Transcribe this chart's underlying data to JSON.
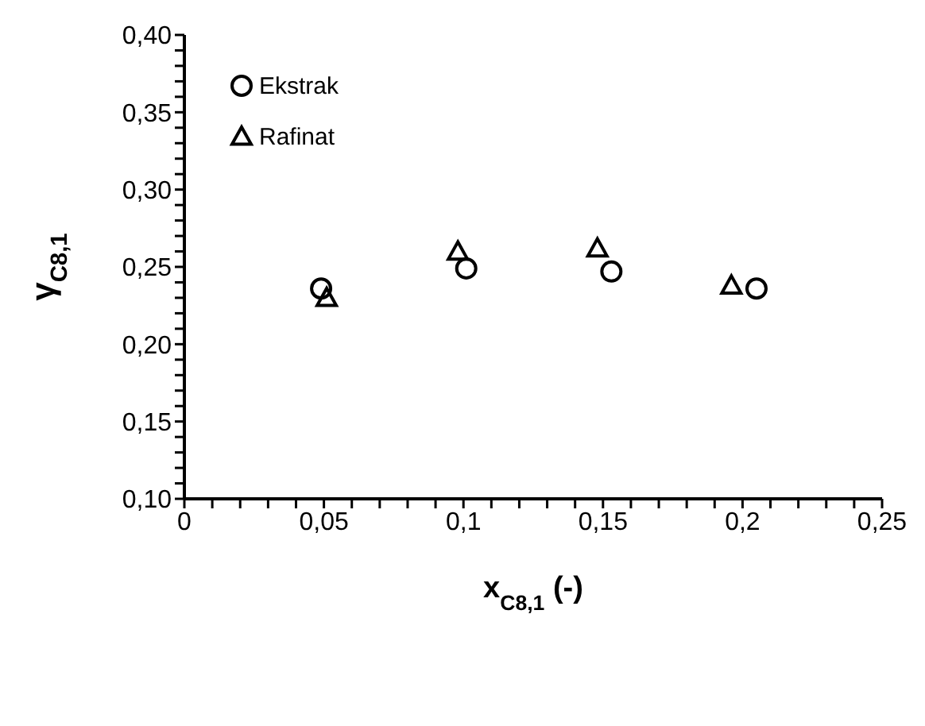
{
  "chart_data": {
    "type": "scatter",
    "xlabel": "x$_{C8,1}$ (-)",
    "ylabel": "γ$_{C8,1}$",
    "xlim": [
      0,
      0.25
    ],
    "ylim": [
      0.1,
      0.4
    ],
    "xticks": [
      {
        "value": 0,
        "label": "0"
      },
      {
        "value": 0.01,
        "label": null
      },
      {
        "value": 0.02,
        "label": null
      },
      {
        "value": 0.03,
        "label": null
      },
      {
        "value": 0.04,
        "label": null
      },
      {
        "value": 0.05,
        "label": "0,05"
      },
      {
        "value": 0.06,
        "label": null
      },
      {
        "value": 0.07,
        "label": null
      },
      {
        "value": 0.08,
        "label": null
      },
      {
        "value": 0.09,
        "label": null
      },
      {
        "value": 0.1,
        "label": "0,1"
      },
      {
        "value": 0.11,
        "label": null
      },
      {
        "value": 0.12,
        "label": null
      },
      {
        "value": 0.13,
        "label": null
      },
      {
        "value": 0.14,
        "label": null
      },
      {
        "value": 0.15,
        "label": "0,15"
      },
      {
        "value": 0.16,
        "label": null
      },
      {
        "value": 0.17,
        "label": null
      },
      {
        "value": 0.18,
        "label": null
      },
      {
        "value": 0.19,
        "label": null
      },
      {
        "value": 0.2,
        "label": "0,2"
      },
      {
        "value": 0.21,
        "label": null
      },
      {
        "value": 0.22,
        "label": null
      },
      {
        "value": 0.23,
        "label": null
      },
      {
        "value": 0.24,
        "label": null
      },
      {
        "value": 0.25,
        "label": "0,25"
      }
    ],
    "yticks": [
      {
        "value": 0.1,
        "label": "0,10"
      },
      {
        "value": 0.11,
        "label": null
      },
      {
        "value": 0.12,
        "label": null
      },
      {
        "value": 0.13,
        "label": null
      },
      {
        "value": 0.14,
        "label": null
      },
      {
        "value": 0.15,
        "label": "0,15"
      },
      {
        "value": 0.16,
        "label": null
      },
      {
        "value": 0.17,
        "label": null
      },
      {
        "value": 0.18,
        "label": null
      },
      {
        "value": 0.19,
        "label": null
      },
      {
        "value": 0.2,
        "label": "0,20"
      },
      {
        "value": 0.21,
        "label": null
      },
      {
        "value": 0.22,
        "label": null
      },
      {
        "value": 0.23,
        "label": null
      },
      {
        "value": 0.24,
        "label": null
      },
      {
        "value": 0.25,
        "label": "0,25"
      },
      {
        "value": 0.26,
        "label": null
      },
      {
        "value": 0.27,
        "label": null
      },
      {
        "value": 0.28,
        "label": null
      },
      {
        "value": 0.29,
        "label": null
      },
      {
        "value": 0.3,
        "label": "0,30"
      },
      {
        "value": 0.31,
        "label": null
      },
      {
        "value": 0.32,
        "label": null
      },
      {
        "value": 0.33,
        "label": null
      },
      {
        "value": 0.34,
        "label": null
      },
      {
        "value": 0.35,
        "label": "0,35"
      },
      {
        "value": 0.36,
        "label": null
      },
      {
        "value": 0.37,
        "label": null
      },
      {
        "value": 0.38,
        "label": null
      },
      {
        "value": 0.39,
        "label": null
      },
      {
        "value": 0.4,
        "label": "0,40"
      }
    ],
    "grid": false,
    "legend": "top left",
    "series": [
      {
        "name": "Ekstrak",
        "color": "#000000",
        "marker": "circle",
        "x": [
          0.049,
          0.101,
          0.153,
          0.205
        ],
        "values": [
          0.236,
          0.249,
          0.247,
          0.236
        ]
      },
      {
        "name": "Rafinat",
        "color": "#000000",
        "marker": "triangle",
        "x": [
          0.051,
          0.098,
          0.148,
          0.196
        ],
        "values": [
          0.23,
          0.26,
          0.262,
          0.238
        ]
      }
    ]
  }
}
